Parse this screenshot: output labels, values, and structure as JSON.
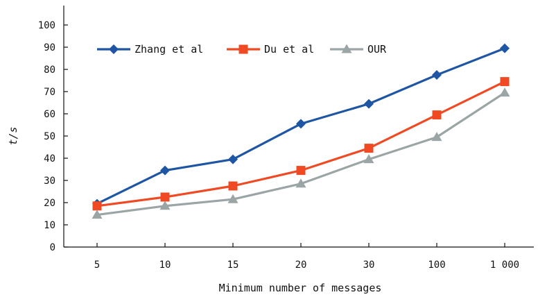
{
  "chart_data": {
    "type": "line",
    "categories": [
      "5",
      "10",
      "15",
      "20",
      "30",
      "100",
      "1 000"
    ],
    "xlabel": "Minimum number of messages",
    "ylabel": "t/s",
    "ylim": [
      0,
      100
    ],
    "yticks": [
      0,
      10,
      20,
      30,
      40,
      50,
      60,
      70,
      80,
      90,
      100
    ],
    "grid": false,
    "legend_position": "top-left",
    "series": [
      {
        "name": "Zhang et al",
        "values": [
          19.5,
          34.5,
          39.5,
          55.5,
          64.5,
          77.5,
          89.5
        ],
        "color": "#1f56a3",
        "marker": "diamond"
      },
      {
        "name": "Du et al",
        "values": [
          18.5,
          22.5,
          27.5,
          34.5,
          44.5,
          59.5,
          74.5
        ],
        "color": "#ef4a23",
        "marker": "square"
      },
      {
        "name": "OUR",
        "values": [
          14.5,
          18.5,
          21.5,
          28.5,
          39.5,
          49.5,
          69.5
        ],
        "color": "#9ca5a6",
        "marker": "triangle"
      }
    ]
  }
}
